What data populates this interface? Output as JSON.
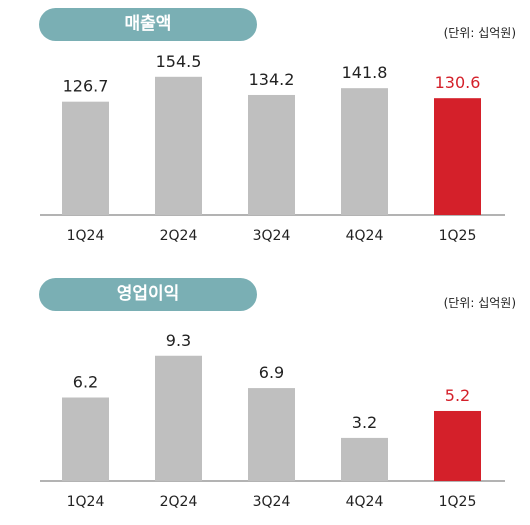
{
  "unit_label": "(단위: 십억원)",
  "highlight_color": "#d4202a",
  "bar_color": "#bfbfbf",
  "pill_color": "#7aafb4",
  "chart_data": [
    {
      "type": "bar",
      "title": "매출액",
      "categories": [
        "1Q24",
        "2Q24",
        "3Q24",
        "4Q24",
        "1Q25"
      ],
      "values": [
        126.7,
        154.5,
        134.2,
        141.8,
        130.6
      ],
      "value_labels": [
        "126.7",
        "154.5",
        "134.2",
        "141.8",
        "130.6"
      ],
      "highlight_index": 4,
      "ylim": [
        0,
        180
      ]
    },
    {
      "type": "bar",
      "title": "영업이익",
      "categories": [
        "1Q24",
        "2Q24",
        "3Q24",
        "4Q24",
        "1Q25"
      ],
      "values": [
        6.2,
        9.3,
        6.9,
        3.2,
        5.2
      ],
      "value_labels": [
        "6.2",
        "9.3",
        "6.9",
        "3.2",
        "5.2"
      ],
      "highlight_index": 4,
      "ylim": [
        0,
        12.4
      ]
    }
  ]
}
